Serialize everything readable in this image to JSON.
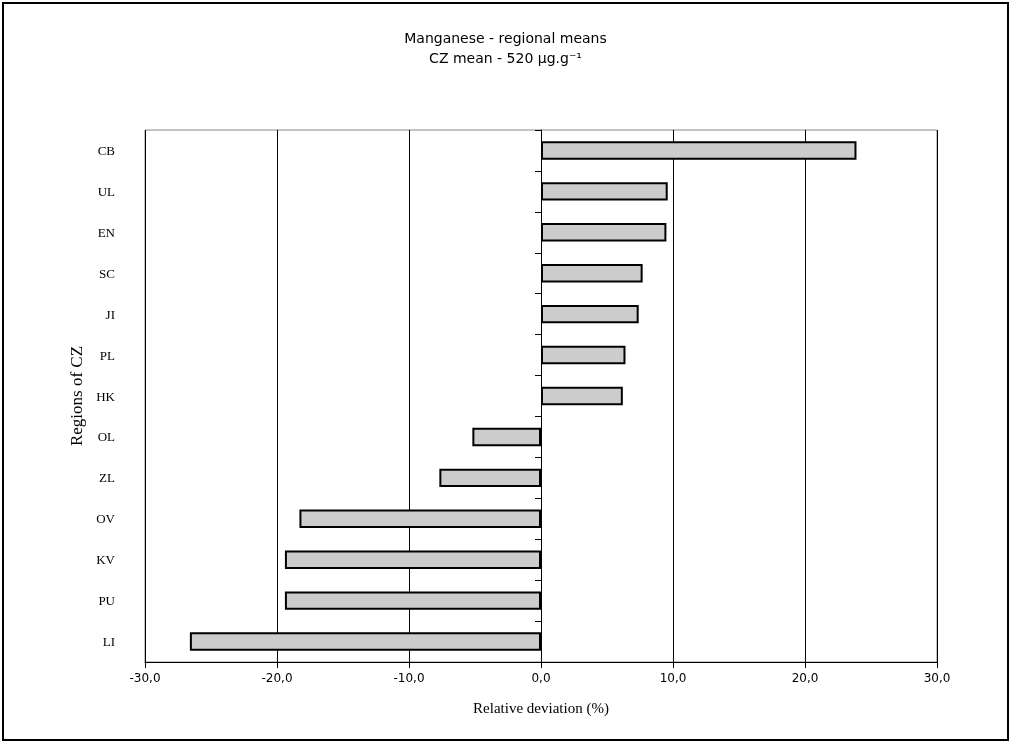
{
  "chart_data": {
    "type": "bar",
    "orientation": "horizontal",
    "title": "Manganese - regional means",
    "subtitle": "CZ mean - 520 µg.g⁻¹",
    "xlabel": "Relative deviation (%)",
    "ylabel": "Regions of CZ",
    "categories": [
      "CB",
      "UL",
      "EN",
      "SC",
      "JI",
      "PL",
      "HK",
      "OL",
      "ZL",
      "OV",
      "KV",
      "PU",
      "LI"
    ],
    "values": [
      23.9,
      9.6,
      9.5,
      7.7,
      7.4,
      6.4,
      6.2,
      -5.2,
      -7.7,
      -18.3,
      -19.4,
      -19.4,
      -26.6
    ],
    "color": "#cccccc",
    "xlim": [
      -30,
      30
    ],
    "xticks": [
      {
        "value": -30,
        "label": "-30,0"
      },
      {
        "value": -20,
        "label": "-20,0"
      },
      {
        "value": -10,
        "label": "-10,0"
      },
      {
        "value": 0,
        "label": "0,0"
      },
      {
        "value": 10,
        "label": "10,0"
      },
      {
        "value": 20,
        "label": "20,0"
      },
      {
        "value": 30,
        "label": "30,0"
      }
    ],
    "grid": "x"
  }
}
